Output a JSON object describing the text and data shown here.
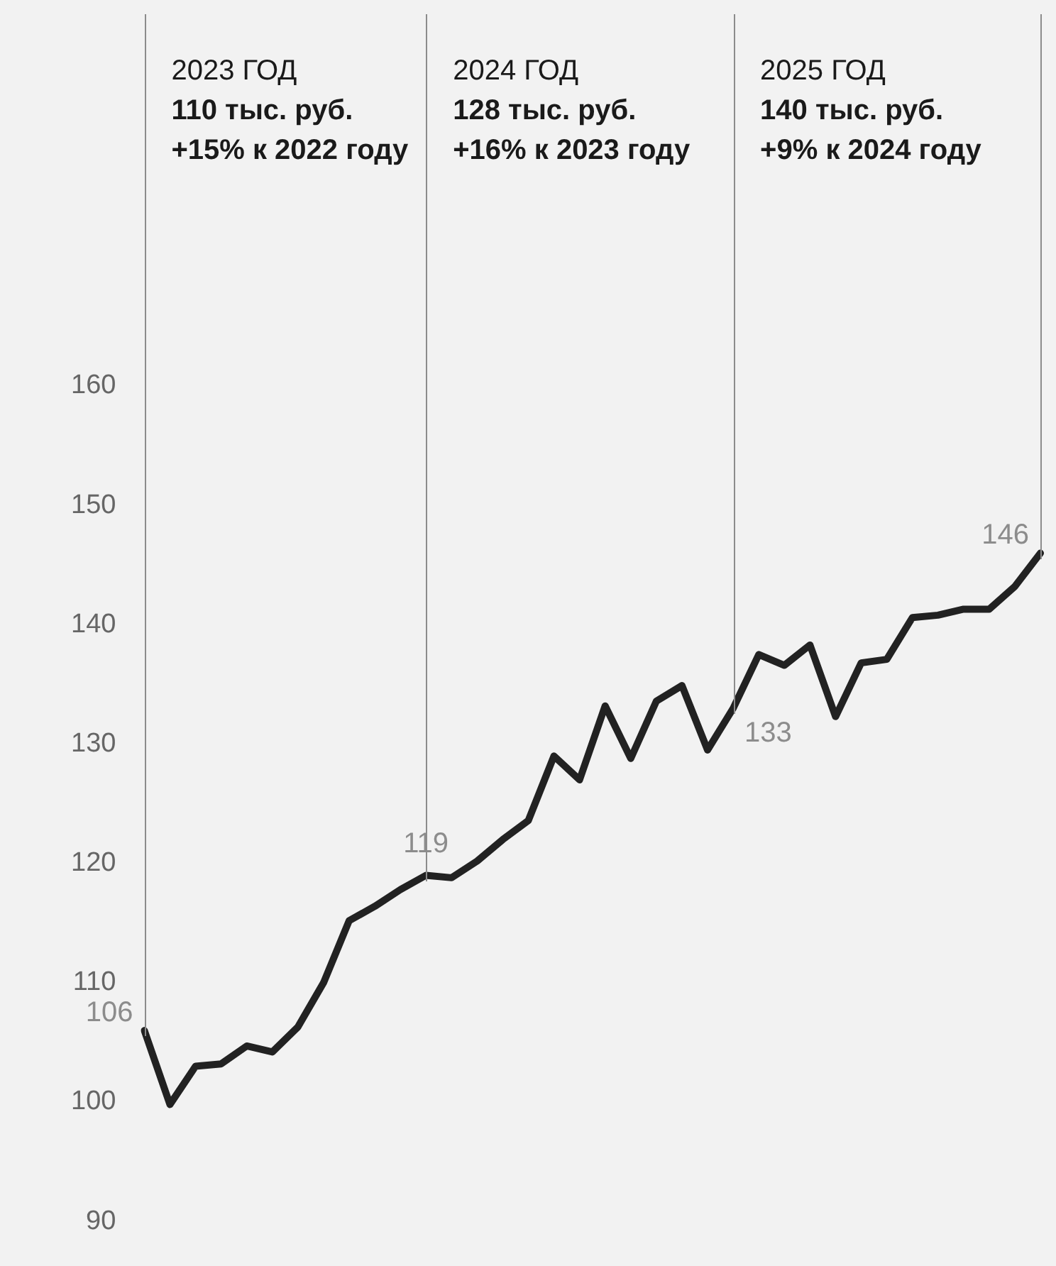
{
  "chart_data": {
    "type": "line",
    "categories": [
      null,
      null,
      null,
      null,
      null,
      null,
      null,
      null,
      null,
      null,
      null,
      null,
      null,
      null,
      null,
      null,
      null,
      null,
      null,
      null,
      null,
      null,
      null,
      null,
      null,
      null,
      null,
      null,
      null,
      null,
      null,
      null,
      null,
      null,
      null,
      null
    ],
    "series": [
      {
        "color": "#222222",
        "values": [
          106,
          99.8,
          103,
          103.2,
          104.7,
          104.2,
          106.3,
          110,
          115.2,
          116.4,
          117.8,
          119,
          118.8,
          120.2,
          122,
          123.6,
          129,
          127,
          133.2,
          128.8,
          133.6,
          134.9,
          129.5,
          133,
          137.5,
          136.6,
          138.3,
          132.3,
          136.8,
          137.1,
          140.6,
          140.8,
          141.3,
          141.3,
          143.2,
          146
        ],
        "value_labels": [
          "106",
          null,
          null,
          null,
          null,
          null,
          null,
          null,
          null,
          null,
          null,
          "119",
          null,
          null,
          null,
          null,
          null,
          null,
          null,
          null,
          null,
          null,
          null,
          "133",
          null,
          null,
          null,
          null,
          null,
          null,
          null,
          null,
          null,
          null,
          null,
          "146"
        ]
      }
    ],
    "ylim": [
      90,
      160
    ],
    "yticks": [
      90,
      100,
      110,
      120,
      130,
      140,
      150,
      160
    ],
    "tick_labels": "y",
    "legend": false,
    "marker": "none",
    "line_style": "solid",
    "annotations": [
      "2023 ГОД\n110 тыс. руб.\n+15% к 2022 году",
      "2024 ГОД\n128 тыс. руб.\n+16% к 2023 году",
      "2025 ГОД\n140 тыс. руб.\n+9% к 2024 году"
    ]
  }
}
